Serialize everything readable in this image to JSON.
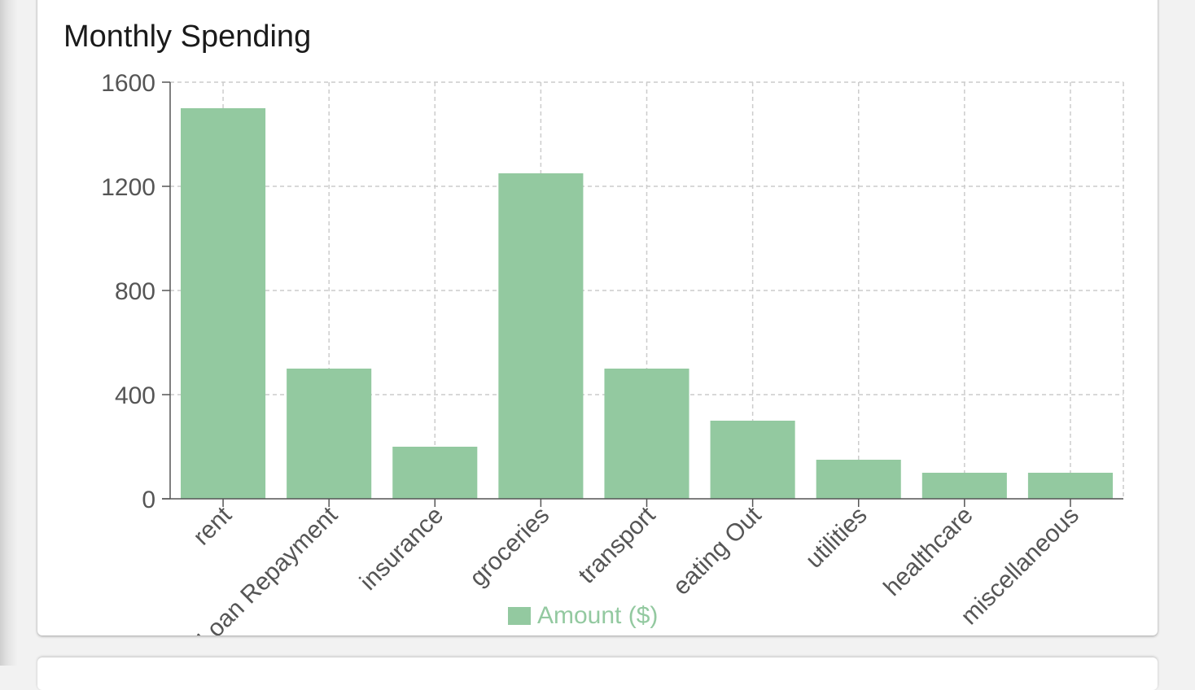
{
  "card": {
    "title": "Monthly Spending"
  },
  "colors": {
    "bar": "#93c9a0",
    "axis": "#555555",
    "grid": "#cccccc",
    "tick_text": "#555555",
    "legend_text": "#93c9a0"
  },
  "chart_data": {
    "type": "bar",
    "title": "Monthly Spending",
    "categories": [
      "rent",
      "Loan Repayment",
      "insurance",
      "groceries",
      "transport",
      "eating Out",
      "utilities",
      "healthcare",
      "miscellaneous"
    ],
    "series": [
      {
        "name": "Amount ($)",
        "values": [
          1500,
          500,
          200,
          1250,
          500,
          300,
          150,
          100,
          100
        ]
      }
    ],
    "yticks": [
      0,
      400,
      800,
      1200,
      1600
    ],
    "ylim": [
      0,
      1600
    ],
    "grid": true,
    "legend": "bottom-center"
  }
}
